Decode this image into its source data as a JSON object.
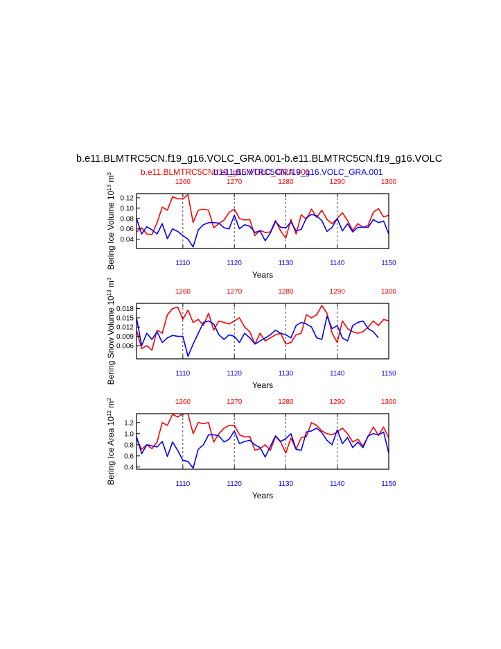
{
  "title": "b.e11.BLMTRC5CN.f19_g16.VOLC_GRA.001-b.e11.BLMTRC5CN.f19_g16.VOLC",
  "subtitle_red": "b.e11.BLMTRC5CN.f19_g16.VOLC_GRA.001",
  "subtitle_blue": "b.e11.BLMTRC5CN.f19_g16.VOLC_GRA.001",
  "colors": {
    "red": "#ff0000",
    "blue": "#0000ff",
    "axis": "#000000"
  },
  "chart_data": [
    {
      "type": "line",
      "ylabel": "Bering Ice Volume 10^13 m^3",
      "xlabel": "Years",
      "xlim_bottom": [
        1101,
        1150
      ],
      "xlim_top": [
        1251,
        1300
      ],
      "ylim": [
        0.022,
        0.128
      ],
      "yticks": [
        0.04,
        0.06,
        0.08,
        0.1,
        0.12
      ],
      "ytick_labels": [
        "0.04",
        "0.06",
        "0.08",
        "0.10",
        "0.12"
      ],
      "xticks_bottom": [
        1110,
        1120,
        1130,
        1140,
        1150
      ],
      "xticks_top": [
        1260,
        1270,
        1280,
        1290,
        1300
      ],
      "grid": "dashed vertical at tick positions",
      "series": [
        {
          "color": "red",
          "axis": "top",
          "x_start": 1251,
          "values": [
            0.054,
            0.062,
            0.05,
            0.049,
            0.072,
            0.102,
            0.096,
            0.122,
            0.118,
            0.118,
            0.126,
            0.072,
            0.096,
            0.098,
            0.096,
            0.062,
            0.07,
            0.077,
            0.092,
            0.098,
            0.08,
            0.077,
            0.078,
            0.047,
            0.057,
            0.053,
            0.054,
            0.076,
            0.056,
            0.042,
            0.078,
            0.05,
            0.087,
            0.079,
            0.098,
            0.082,
            0.096,
            0.078,
            0.07,
            0.08,
            0.091,
            0.076,
            0.057,
            0.07,
            0.063,
            0.067,
            0.092,
            0.099,
            0.083,
            0.086,
            0.068
          ]
        },
        {
          "color": "blue",
          "axis": "bottom",
          "x_start": 1101,
          "values": [
            0.08,
            0.05,
            0.064,
            0.058,
            0.05,
            0.07,
            0.041,
            0.06,
            0.055,
            0.047,
            0.04,
            0.025,
            0.058,
            0.068,
            0.072,
            0.072,
            0.071,
            0.062,
            0.06,
            0.086,
            0.06,
            0.068,
            0.065,
            0.053,
            0.056,
            0.037,
            0.052,
            0.074,
            0.063,
            0.062,
            0.073,
            0.056,
            0.059,
            0.081,
            0.088,
            0.085,
            0.076,
            0.055,
            0.063,
            0.08,
            0.056,
            0.07,
            0.054,
            0.063,
            0.063,
            0.063,
            0.078,
            0.072,
            0.075,
            0.05
          ]
        }
      ]
    },
    {
      "type": "line",
      "ylabel": "Bering Snow Volume 10^13 m^3",
      "xlabel": "Years",
      "xlim_bottom": [
        1101,
        1150
      ],
      "xlim_top": [
        1251,
        1300
      ],
      "ylim": [
        0.0017,
        0.0197
      ],
      "yticks": [
        0.006,
        0.009,
        0.012,
        0.015,
        0.018
      ],
      "ytick_labels": [
        "0.006",
        "0.009",
        "0.012",
        "0.015",
        "0.018"
      ],
      "xticks_bottom": [
        1110,
        1120,
        1130,
        1140,
        1150
      ],
      "xticks_top": [
        1260,
        1270,
        1280,
        1290,
        1300
      ],
      "grid": "dashed vertical at tick positions",
      "series": [
        {
          "color": "red",
          "axis": "top",
          "x_start": 1251,
          "values": [
            0.011,
            0.005,
            0.006,
            0.0045,
            0.011,
            0.01,
            0.016,
            0.018,
            0.0185,
            0.0145,
            0.0175,
            0.0135,
            0.0145,
            0.0125,
            0.0165,
            0.011,
            0.014,
            0.0135,
            0.013,
            0.014,
            0.015,
            0.012,
            0.0105,
            0.0065,
            0.01,
            0.0075,
            0.0085,
            0.0095,
            0.01,
            0.0065,
            0.007,
            0.0095,
            0.01,
            0.016,
            0.015,
            0.016,
            0.019,
            0.0165,
            0.01,
            0.007,
            0.014,
            0.0115,
            0.0105,
            0.01,
            0.0105,
            0.012,
            0.014,
            0.0125,
            0.0145,
            0.014
          ]
        },
        {
          "color": "blue",
          "axis": "bottom",
          "x_start": 1101,
          "values": [
            0.015,
            0.006,
            0.01,
            0.008,
            0.0105,
            0.007,
            0.0085,
            0.0093,
            0.009,
            0.009,
            0.0025,
            0.0065,
            0.01,
            0.0135,
            0.014,
            0.013,
            0.0095,
            0.008,
            0.0095,
            0.009,
            0.007,
            0.01,
            0.0085,
            0.0065,
            0.0075,
            0.0085,
            0.0095,
            0.011,
            0.01,
            0.0095,
            0.0085,
            0.0125,
            0.0135,
            0.013,
            0.012,
            0.0085,
            0.008,
            0.0155,
            0.0115,
            0.0125,
            0.0085,
            0.0075,
            0.0125,
            0.0135,
            0.014,
            0.0115,
            0.0105,
            0.0085
          ]
        }
      ]
    },
    {
      "type": "line",
      "ylabel": "Bering Ice Area 10^12 m^2",
      "xlabel": "Years",
      "xlim_bottom": [
        1101,
        1150
      ],
      "xlim_top": [
        1251,
        1300
      ],
      "ylim": [
        0.36,
        1.36
      ],
      "yticks": [
        0.4,
        0.6,
        0.8,
        1.0,
        1.2
      ],
      "ytick_labels": [
        "0.4",
        "0.6",
        "0.8",
        "1.0",
        "1.2"
      ],
      "xticks_bottom": [
        1110,
        1120,
        1130,
        1140,
        1150
      ],
      "xticks_top": [
        1260,
        1270,
        1280,
        1290,
        1300
      ],
      "grid": "dashed vertical at tick positions",
      "series": [
        {
          "color": "red",
          "axis": "top",
          "x_start": 1251,
          "values": [
            0.9,
            0.72,
            0.8,
            0.73,
            0.85,
            1.2,
            1.15,
            1.35,
            1.3,
            1.36,
            1.36,
            1.0,
            1.2,
            1.18,
            1.2,
            0.85,
            1.0,
            1.1,
            1.15,
            1.15,
            0.98,
            0.94,
            0.95,
            0.7,
            0.73,
            0.8,
            0.7,
            0.95,
            0.85,
            0.65,
            0.92,
            0.72,
            0.93,
            0.95,
            1.2,
            1.15,
            1.05,
            1.0,
            0.98,
            1.03,
            1.1,
            1.0,
            0.85,
            0.9,
            0.78,
            0.95,
            1.12,
            0.97,
            1.12,
            0.92
          ]
        },
        {
          "color": "blue",
          "axis": "bottom",
          "x_start": 1101,
          "values": [
            0.95,
            0.64,
            0.8,
            0.78,
            0.76,
            0.86,
            0.59,
            0.85,
            0.7,
            0.52,
            0.5,
            0.38,
            0.72,
            0.8,
            0.98,
            0.98,
            0.96,
            0.85,
            0.9,
            1.05,
            0.82,
            0.86,
            0.88,
            0.8,
            0.75,
            0.58,
            0.77,
            0.96,
            0.86,
            0.91,
            1.0,
            0.72,
            0.7,
            1.03,
            1.05,
            1.1,
            1.02,
            0.88,
            0.8,
            1.07,
            0.82,
            0.93,
            0.75,
            0.85,
            0.75,
            0.96,
            1.0,
            0.98,
            1.03,
            0.65
          ]
        }
      ]
    }
  ]
}
